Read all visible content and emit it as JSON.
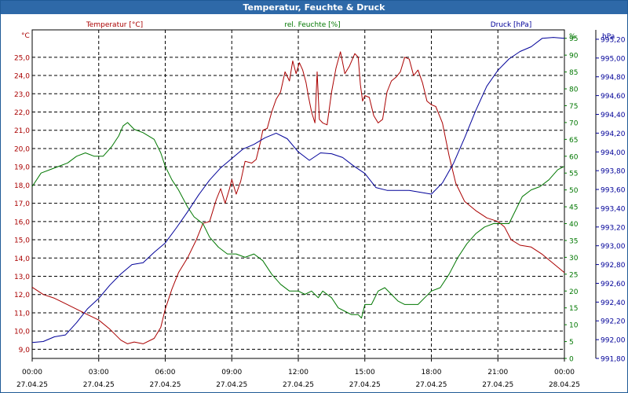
{
  "window": {
    "title": "Temperatur, Feuchte & Druck"
  },
  "chart_data": {
    "type": "line",
    "x_ticks": [
      {
        "time": "00:00",
        "date": "27.04.25"
      },
      {
        "time": "03:00",
        "date": "27.04.25"
      },
      {
        "time": "06:00",
        "date": "27.04.25"
      },
      {
        "time": "09:00",
        "date": "27.04.25"
      },
      {
        "time": "12:00",
        "date": "27.04.25"
      },
      {
        "time": "15:00",
        "date": "27.04.25"
      },
      {
        "time": "18:00",
        "date": "27.04.25"
      },
      {
        "time": "21:00",
        "date": "27.04.25"
      },
      {
        "time": "00:00",
        "date": "28.04.25"
      }
    ],
    "xlim_hours": [
      0,
      24
    ],
    "grid": true,
    "axes": {
      "temperature": {
        "title": "Temperatur [°C]",
        "unit": "°C",
        "side": "left",
        "color": "#aa0000",
        "ylim": [
          8.5,
          26.5
        ],
        "ticks": [
          "9,0",
          "10,0",
          "11,0",
          "12,0",
          "13,0",
          "14,0",
          "15,0",
          "16,0",
          "17,0",
          "18,0",
          "19,0",
          "20,0",
          "21,0",
          "22,0",
          "23,0",
          "24,0",
          "25,0"
        ],
        "tick_values": [
          9,
          10,
          11,
          12,
          13,
          14,
          15,
          16,
          17,
          18,
          19,
          20,
          21,
          22,
          23,
          24,
          25
        ]
      },
      "humidity": {
        "title": "rel. Feuchte [%]",
        "unit": "%",
        "side": "right",
        "color": "#007700",
        "ylim": [
          0,
          97.5
        ],
        "ticks": [
          "0",
          "5",
          "10",
          "15",
          "20",
          "25",
          "30",
          "35",
          "40",
          "45",
          "50",
          "55",
          "60",
          "65",
          "70",
          "75",
          "80",
          "85",
          "90",
          "95"
        ],
        "tick_values": [
          0,
          5,
          10,
          15,
          20,
          25,
          30,
          35,
          40,
          45,
          50,
          55,
          60,
          65,
          70,
          75,
          80,
          85,
          90,
          95
        ]
      },
      "pressure": {
        "title": "Druck [hPa]",
        "unit": "hPa",
        "side": "right",
        "color": "#000099",
        "ylim": [
          991.8,
          995.3
        ],
        "ticks": [
          "991,80",
          "992,00",
          "992,20",
          "992,40",
          "992,60",
          "992,80",
          "993,00",
          "993,20",
          "993,40",
          "993,60",
          "993,80",
          "994,00",
          "994,20",
          "994,40",
          "994,60",
          "994,80",
          "995,00",
          "995,20"
        ],
        "tick_values": [
          991.8,
          992.0,
          992.2,
          992.4,
          992.6,
          992.8,
          993.0,
          993.2,
          993.4,
          993.6,
          993.8,
          994.0,
          994.2,
          994.4,
          994.6,
          994.8,
          995.0,
          995.2
        ]
      }
    },
    "series": [
      {
        "name": "Temperatur [°C]",
        "axis": "temperature",
        "color": "#aa0000",
        "points": [
          [
            0,
            12.4
          ],
          [
            0.5,
            12.0
          ],
          [
            1,
            11.8
          ],
          [
            1.5,
            11.5
          ],
          [
            2,
            11.2
          ],
          [
            2.5,
            10.9
          ],
          [
            3,
            10.6
          ],
          [
            3.5,
            10.1
          ],
          [
            4,
            9.5
          ],
          [
            4.3,
            9.3
          ],
          [
            4.6,
            9.4
          ],
          [
            5,
            9.3
          ],
          [
            5.5,
            9.6
          ],
          [
            5.8,
            10.2
          ],
          [
            6,
            11.2
          ],
          [
            6.3,
            12.3
          ],
          [
            6.6,
            13.2
          ],
          [
            7,
            14.0
          ],
          [
            7.4,
            15.0
          ],
          [
            7.7,
            15.9
          ],
          [
            8,
            16.0
          ],
          [
            8.3,
            17.2
          ],
          [
            8.5,
            17.8
          ],
          [
            8.7,
            17.0
          ],
          [
            8.9,
            17.8
          ],
          [
            9,
            18.3
          ],
          [
            9.2,
            17.5
          ],
          [
            9.4,
            18.2
          ],
          [
            9.6,
            19.3
          ],
          [
            9.9,
            19.2
          ],
          [
            10.1,
            19.4
          ],
          [
            10.3,
            20.4
          ],
          [
            10.4,
            21.0
          ],
          [
            10.6,
            21.1
          ],
          [
            10.8,
            22.0
          ],
          [
            11.0,
            22.7
          ],
          [
            11.2,
            23.1
          ],
          [
            11.4,
            24.2
          ],
          [
            11.6,
            23.7
          ],
          [
            11.75,
            24.8
          ],
          [
            11.9,
            24.1
          ],
          [
            12.05,
            24.7
          ],
          [
            12.2,
            24.3
          ],
          [
            12.35,
            23.6
          ],
          [
            12.45,
            22.9
          ],
          [
            12.6,
            22.0
          ],
          [
            12.75,
            21.4
          ],
          [
            12.85,
            24.2
          ],
          [
            12.95,
            21.6
          ],
          [
            13.1,
            21.4
          ],
          [
            13.3,
            21.3
          ],
          [
            13.5,
            23.1
          ],
          [
            13.7,
            24.4
          ],
          [
            13.9,
            25.3
          ],
          [
            14.1,
            24.1
          ],
          [
            14.3,
            24.5
          ],
          [
            14.55,
            25.2
          ],
          [
            14.7,
            25.0
          ],
          [
            14.8,
            23.5
          ],
          [
            14.9,
            22.6
          ],
          [
            15.0,
            22.9
          ],
          [
            15.2,
            22.8
          ],
          [
            15.4,
            21.8
          ],
          [
            15.6,
            21.4
          ],
          [
            15.8,
            21.6
          ],
          [
            16.0,
            23.1
          ],
          [
            16.2,
            23.7
          ],
          [
            16.4,
            23.9
          ],
          [
            16.6,
            24.2
          ],
          [
            16.8,
            25.0
          ],
          [
            17.0,
            24.9
          ],
          [
            17.2,
            24.0
          ],
          [
            17.4,
            24.3
          ],
          [
            17.6,
            23.6
          ],
          [
            17.8,
            22.6
          ],
          [
            18.0,
            22.4
          ],
          [
            18.2,
            22.3
          ],
          [
            18.5,
            21.4
          ],
          [
            18.8,
            19.6
          ],
          [
            19.1,
            18.1
          ],
          [
            19.5,
            17.1
          ],
          [
            20.0,
            16.6
          ],
          [
            20.5,
            16.2
          ],
          [
            21.0,
            16.0
          ],
          [
            21.3,
            15.7
          ],
          [
            21.6,
            15.0
          ],
          [
            22.0,
            14.7
          ],
          [
            22.5,
            14.6
          ],
          [
            23.0,
            14.2
          ],
          [
            23.5,
            13.7
          ],
          [
            24.0,
            13.2
          ]
        ]
      },
      {
        "name": "rel. Feuchte [%]",
        "axis": "humidity",
        "color": "#007700",
        "points": [
          [
            0,
            51
          ],
          [
            0.4,
            55
          ],
          [
            0.8,
            56
          ],
          [
            1.2,
            57
          ],
          [
            1.6,
            58
          ],
          [
            2,
            60
          ],
          [
            2.4,
            61
          ],
          [
            2.8,
            60
          ],
          [
            3.2,
            60
          ],
          [
            3.6,
            63
          ],
          [
            3.9,
            66
          ],
          [
            4.1,
            69
          ],
          [
            4.3,
            70
          ],
          [
            4.6,
            68
          ],
          [
            5,
            67
          ],
          [
            5.5,
            65
          ],
          [
            5.8,
            61
          ],
          [
            6,
            57
          ],
          [
            6.3,
            53
          ],
          [
            6.6,
            50
          ],
          [
            7,
            45
          ],
          [
            7.3,
            42
          ],
          [
            7.7,
            40
          ],
          [
            8,
            36
          ],
          [
            8.4,
            33
          ],
          [
            8.8,
            31
          ],
          [
            9.2,
            31
          ],
          [
            9.6,
            30
          ],
          [
            10,
            31
          ],
          [
            10.4,
            29
          ],
          [
            10.8,
            25
          ],
          [
            11.2,
            22
          ],
          [
            11.6,
            20
          ],
          [
            12,
            20
          ],
          [
            12.3,
            19
          ],
          [
            12.6,
            20
          ],
          [
            12.9,
            18
          ],
          [
            13.1,
            20
          ],
          [
            13.3,
            19
          ],
          [
            13.5,
            18
          ],
          [
            13.8,
            15
          ],
          [
            14.1,
            14
          ],
          [
            14.4,
            13
          ],
          [
            14.7,
            13
          ],
          [
            14.85,
            12
          ],
          [
            15,
            16
          ],
          [
            15.3,
            16
          ],
          [
            15.6,
            20
          ],
          [
            15.9,
            21
          ],
          [
            16.2,
            19
          ],
          [
            16.5,
            17
          ],
          [
            16.8,
            16
          ],
          [
            17.1,
            16
          ],
          [
            17.4,
            16
          ],
          [
            17.7,
            18
          ],
          [
            18.0,
            20
          ],
          [
            18.4,
            21
          ],
          [
            18.8,
            25
          ],
          [
            19.2,
            30
          ],
          [
            19.6,
            34
          ],
          [
            20.0,
            37
          ],
          [
            20.4,
            39
          ],
          [
            20.8,
            40
          ],
          [
            21.2,
            40
          ],
          [
            21.5,
            40
          ],
          [
            21.8,
            44
          ],
          [
            22.1,
            48
          ],
          [
            22.5,
            50
          ],
          [
            22.9,
            51
          ],
          [
            23.3,
            53
          ],
          [
            23.7,
            56
          ],
          [
            24.0,
            57
          ]
        ]
      },
      {
        "name": "Druck [hPa]",
        "axis": "pressure",
        "color": "#000099",
        "points": [
          [
            0,
            991.97
          ],
          [
            0.5,
            991.98
          ],
          [
            1,
            992.03
          ],
          [
            1.5,
            992.05
          ],
          [
            2,
            992.18
          ],
          [
            2.5,
            992.33
          ],
          [
            3,
            992.44
          ],
          [
            3.5,
            992.58
          ],
          [
            4,
            992.7
          ],
          [
            4.5,
            992.8
          ],
          [
            5,
            992.82
          ],
          [
            5.5,
            992.93
          ],
          [
            6,
            993.03
          ],
          [
            6.5,
            993.19
          ],
          [
            7,
            993.36
          ],
          [
            7.5,
            993.54
          ],
          [
            8,
            993.7
          ],
          [
            8.5,
            993.83
          ],
          [
            9,
            993.93
          ],
          [
            9.5,
            994.03
          ],
          [
            10,
            994.08
          ],
          [
            10.5,
            994.15
          ],
          [
            11,
            994.2
          ],
          [
            11.5,
            994.14
          ],
          [
            12,
            994.0
          ],
          [
            12.5,
            993.91
          ],
          [
            13,
            993.99
          ],
          [
            13.5,
            993.98
          ],
          [
            14,
            993.94
          ],
          [
            14.5,
            993.85
          ],
          [
            15,
            993.77
          ],
          [
            15.5,
            993.62
          ],
          [
            16,
            993.59
          ],
          [
            16.5,
            993.59
          ],
          [
            17,
            993.59
          ],
          [
            17.5,
            993.57
          ],
          [
            18,
            993.55
          ],
          [
            18.5,
            993.67
          ],
          [
            19,
            993.88
          ],
          [
            19.5,
            994.15
          ],
          [
            20,
            994.44
          ],
          [
            20.5,
            994.7
          ],
          [
            21,
            994.87
          ],
          [
            21.5,
            994.99
          ],
          [
            22,
            995.07
          ],
          [
            22.5,
            995.12
          ],
          [
            23,
            995.21
          ],
          [
            23.5,
            995.22
          ],
          [
            24,
            995.21
          ]
        ]
      }
    ]
  }
}
